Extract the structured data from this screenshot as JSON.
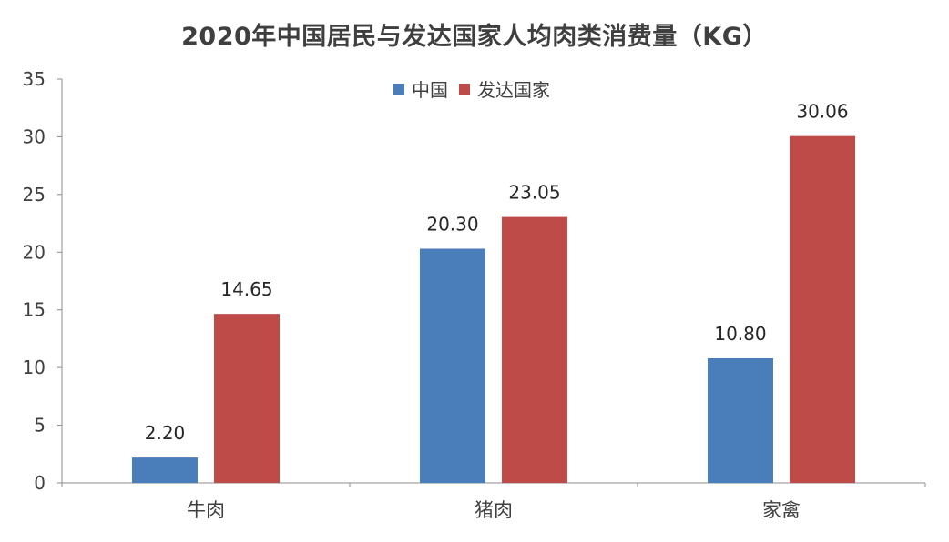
{
  "chart_data": {
    "type": "bar",
    "title": "2020年中国居民与发达国家人均肉类消费量（KG）",
    "xlabel": "",
    "ylabel": "",
    "categories": [
      "牛肉",
      "猪肉",
      "家禽"
    ],
    "series": [
      {
        "name": "中国",
        "color": "#4A7EBB",
        "values": [
          2.2,
          20.3,
          10.8
        ],
        "labels": [
          "2.20",
          "20.30",
          "10.80"
        ]
      },
      {
        "name": "发达国家",
        "color": "#BE4B48",
        "values": [
          14.65,
          23.05,
          30.06
        ],
        "labels": [
          "14.65",
          "23.05",
          "30.06"
        ]
      }
    ],
    "ylim": [
      0,
      35
    ],
    "yticks": [
      "0",
      "5",
      "10",
      "15",
      "20",
      "25",
      "30",
      "35"
    ],
    "legend_position": "top-center",
    "grid": false
  }
}
